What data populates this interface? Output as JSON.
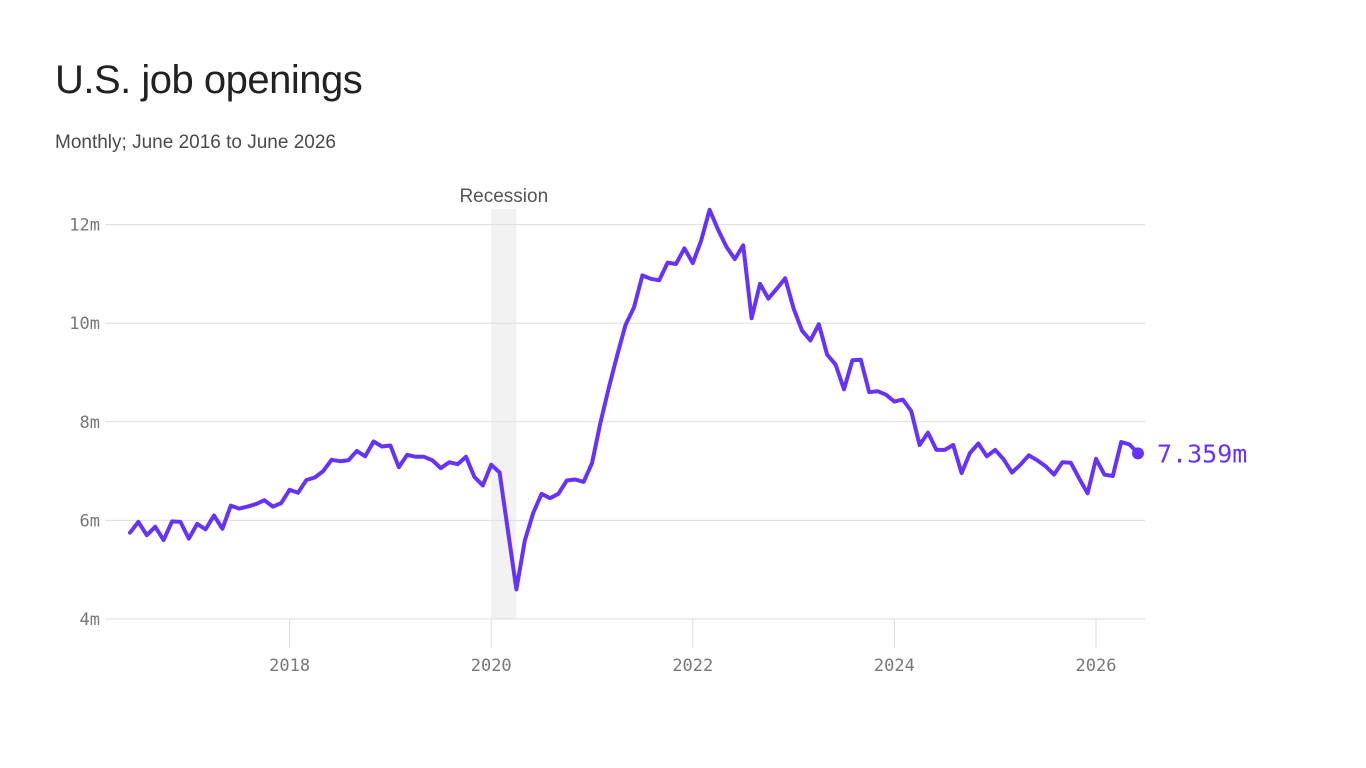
{
  "header": {
    "title": "U.S. job openings",
    "subtitle": "Monthly; June 2016 to June 2026"
  },
  "colors": {
    "line": "#6533ff",
    "grid": "#dddddd",
    "recession": "#f2f2f2"
  },
  "chart_data": {
    "type": "line",
    "title": "U.S. job openings",
    "subtitle": "Monthly; June 2016 to June 2026",
    "xlabel": "",
    "ylabel": "",
    "xlim": [
      2016.375,
      2026.6
    ],
    "ylim": [
      4,
      12.3
    ],
    "yticks": [
      4,
      6,
      8,
      10,
      12
    ],
    "ytick_labels": [
      "4m",
      "6m",
      "8m",
      "10m",
      "12m"
    ],
    "xticks": [
      2018,
      2020,
      2022,
      2024,
      2026
    ],
    "xtick_labels": [
      "2018",
      "2020",
      "2022",
      "2024",
      "2026"
    ],
    "grid": true,
    "recession": {
      "label": "Recession",
      "start": "2020-01",
      "end": "2020-04"
    },
    "last_value_label": "7.359m",
    "series": [
      {
        "x": [
          "2016-06",
          "2016-07",
          "2016-08",
          "2016-09",
          "2016-10",
          "2016-11",
          "2016-12",
          "2017-01",
          "2017-02",
          "2017-03",
          "2017-04",
          "2017-05",
          "2017-06",
          "2017-07",
          "2017-08",
          "2017-09",
          "2017-10",
          "2017-11",
          "2017-12",
          "2018-01",
          "2018-02",
          "2018-03",
          "2018-04",
          "2018-05",
          "2018-06",
          "2018-07",
          "2018-08",
          "2018-09",
          "2018-10",
          "2018-11",
          "2018-12",
          "2019-01",
          "2019-02",
          "2019-03",
          "2019-04",
          "2019-05",
          "2019-06",
          "2019-07",
          "2019-08",
          "2019-09",
          "2019-10",
          "2019-11",
          "2019-12",
          "2020-01",
          "2020-02",
          "2020-03",
          "2020-04",
          "2020-05",
          "2020-06",
          "2020-07",
          "2020-08",
          "2020-09",
          "2020-10",
          "2020-11",
          "2020-12",
          "2021-01",
          "2021-02",
          "2021-03",
          "2021-04",
          "2021-05",
          "2021-06",
          "2021-07",
          "2021-08",
          "2021-09",
          "2021-10",
          "2021-11",
          "2021-12",
          "2022-01",
          "2022-02",
          "2022-03",
          "2022-04",
          "2022-05",
          "2022-06",
          "2022-07",
          "2022-08",
          "2022-09",
          "2022-10",
          "2022-11",
          "2022-12",
          "2023-01",
          "2023-02",
          "2023-03",
          "2023-04",
          "2023-05",
          "2023-06",
          "2023-07",
          "2023-08",
          "2023-09",
          "2023-10",
          "2023-11",
          "2023-12",
          "2024-01",
          "2024-02",
          "2024-03",
          "2024-04",
          "2024-05",
          "2024-06",
          "2024-07",
          "2024-08",
          "2024-09",
          "2024-10",
          "2024-11",
          "2024-12",
          "2025-01",
          "2025-02",
          "2025-03",
          "2025-04",
          "2025-05",
          "2025-06",
          "2025-07",
          "2025-08",
          "2025-09",
          "2025-10",
          "2025-11",
          "2025-12",
          "2026-01",
          "2026-02",
          "2026-03",
          "2026-04",
          "2026-05",
          "2026-06"
        ],
        "values": [
          5.75,
          5.97,
          5.7,
          5.87,
          5.6,
          5.98,
          5.97,
          5.63,
          5.93,
          5.82,
          6.1,
          5.83,
          6.3,
          6.24,
          6.28,
          6.33,
          6.41,
          6.28,
          6.35,
          6.62,
          6.56,
          6.82,
          6.87,
          7.0,
          7.23,
          7.2,
          7.22,
          7.41,
          7.3,
          7.6,
          7.5,
          7.52,
          7.08,
          7.33,
          7.29,
          7.29,
          7.22,
          7.06,
          7.18,
          7.14,
          7.29,
          6.88,
          6.71,
          7.13,
          6.97,
          5.78,
          4.6,
          5.59,
          6.15,
          6.54,
          6.45,
          6.54,
          6.81,
          6.83,
          6.78,
          7.16,
          7.98,
          8.69,
          9.35,
          9.97,
          10.32,
          10.97,
          10.9,
          10.87,
          11.23,
          11.2,
          11.52,
          11.22,
          11.68,
          12.3,
          11.9,
          11.55,
          11.3,
          11.58,
          10.1,
          10.8,
          10.5,
          10.7,
          10.91,
          10.3,
          9.85,
          9.65,
          9.98,
          9.36,
          9.16,
          8.66,
          9.25,
          9.26,
          8.6,
          8.62,
          8.55,
          8.41,
          8.45,
          8.22,
          7.53,
          7.78,
          7.43,
          7.43,
          7.53,
          6.96,
          7.37,
          7.56,
          7.3,
          7.43,
          7.24,
          6.97,
          7.13,
          7.32,
          7.22,
          7.1,
          6.93,
          7.18,
          7.17,
          6.85,
          6.55,
          7.25,
          6.93,
          6.9,
          7.59,
          7.54,
          7.359
        ]
      }
    ]
  }
}
